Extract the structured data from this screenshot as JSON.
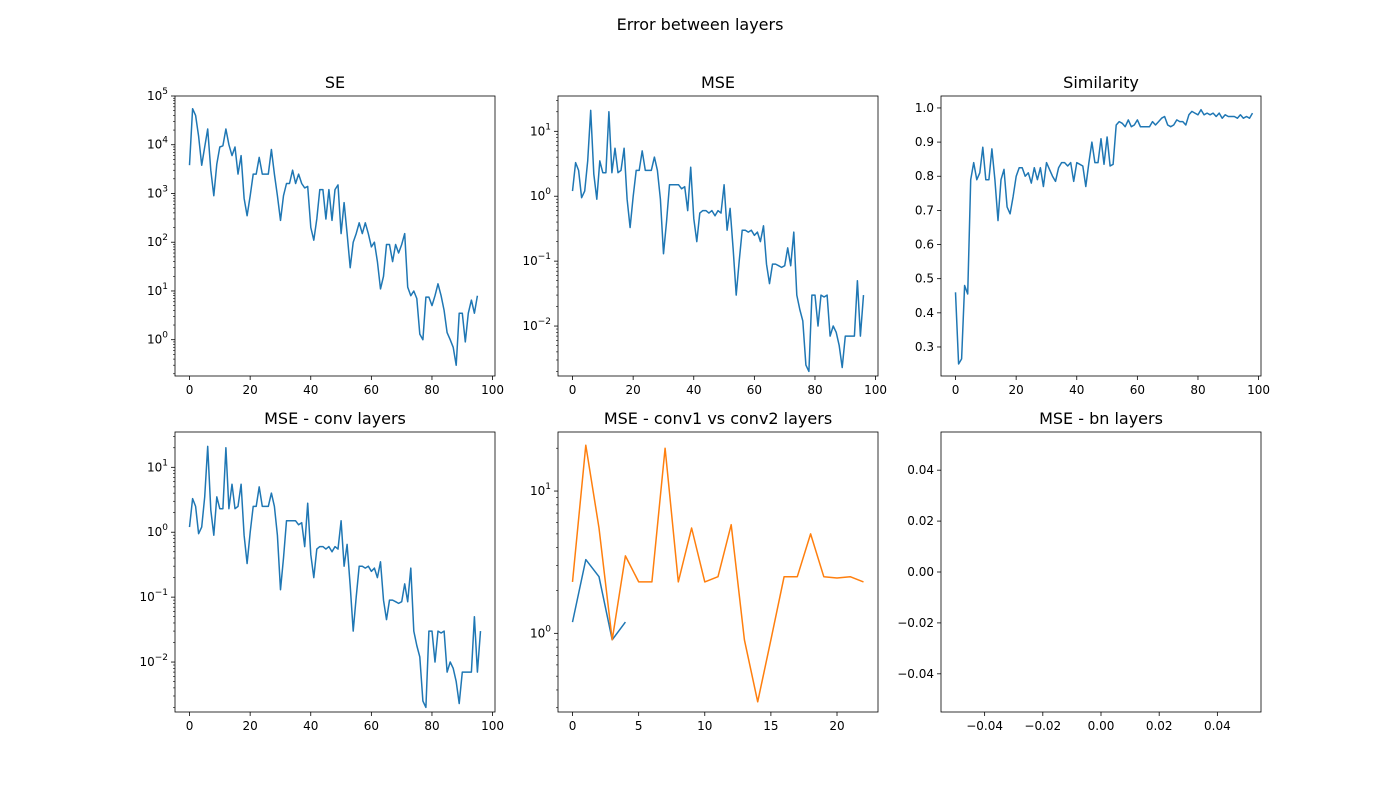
{
  "figure": {
    "suptitle": "Error between layers"
  },
  "chart_data": [
    {
      "type": "line",
      "title": "SE",
      "yscale": "log",
      "xlim": [
        -4.8,
        100.8
      ],
      "ylim": [
        0.18,
        100000
      ],
      "xticks": [
        0,
        20,
        40,
        60,
        80,
        100
      ],
      "xtick_labels": [
        "0",
        "20",
        "40",
        "60",
        "80",
        "100"
      ],
      "yticks": [
        1,
        10,
        100,
        1000,
        10000,
        100000
      ],
      "ytick_labels": [
        "10^0",
        "10^1",
        "10^2",
        "10^3",
        "10^4",
        "10^5"
      ],
      "series": [
        {
          "color": "#1f77b4",
          "x_start": 0,
          "values": [
            3800,
            55000,
            40000,
            15000,
            3800,
            9000,
            21000,
            3000,
            900,
            4000,
            9000,
            9500,
            21000,
            10000,
            6000,
            9000,
            2500,
            6000,
            800,
            350,
            900,
            2500,
            2500,
            5500,
            2500,
            2500,
            2500,
            8000,
            2500,
            900,
            280,
            900,
            1600,
            1600,
            3000,
            1600,
            2500,
            1600,
            1300,
            1400,
            200,
            110,
            300,
            1200,
            1200,
            300,
            1200,
            280,
            1200,
            1500,
            150,
            650,
            150,
            30,
            100,
            150,
            250,
            150,
            250,
            150,
            80,
            100,
            40,
            11,
            20,
            90,
            90,
            40,
            90,
            60,
            90,
            150,
            12,
            8,
            10,
            7,
            1.3,
            1.0,
            7.5,
            7.5,
            5,
            8,
            14,
            8,
            4,
            1.4,
            1.0,
            0.7,
            0.3,
            3.5,
            3.5,
            0.9,
            3.5,
            6.5,
            3.5,
            8
          ]
        }
      ]
    },
    {
      "type": "line",
      "title": "MSE",
      "yscale": "log",
      "xlim": [
        -4.8,
        100.8
      ],
      "ylim": [
        0.0017,
        35
      ],
      "xticks": [
        0,
        20,
        40,
        60,
        80,
        100
      ],
      "xtick_labels": [
        "0",
        "20",
        "40",
        "60",
        "80",
        "100"
      ],
      "yticks": [
        0.01,
        0.1,
        1,
        10
      ],
      "ytick_labels": [
        "10^-2",
        "10^-1",
        "10^0",
        "10^1"
      ],
      "series": [
        {
          "color": "#1f77b4",
          "x_start": 0,
          "values": [
            1.2,
            3.3,
            2.5,
            0.95,
            1.2,
            3.5,
            21,
            2.2,
            0.9,
            3.5,
            2.3,
            2.3,
            20,
            2.3,
            5.5,
            2.3,
            2.5,
            5.5,
            0.9,
            0.33,
            1.0,
            2.5,
            2.5,
            5.0,
            2.5,
            2.5,
            2.5,
            4.0,
            2.5,
            0.9,
            0.13,
            0.4,
            1.5,
            1.5,
            1.5,
            1.5,
            1.3,
            1.4,
            0.6,
            2.8,
            0.45,
            0.2,
            0.55,
            0.6,
            0.6,
            0.55,
            0.6,
            0.5,
            0.6,
            0.55,
            1.5,
            0.3,
            0.65,
            0.15,
            0.03,
            0.1,
            0.3,
            0.3,
            0.28,
            0.3,
            0.25,
            0.28,
            0.2,
            0.35,
            0.09,
            0.045,
            0.09,
            0.09,
            0.085,
            0.08,
            0.085,
            0.16,
            0.085,
            0.28,
            0.03,
            0.018,
            0.012,
            0.0025,
            0.002,
            0.03,
            0.03,
            0.01,
            0.03,
            0.028,
            0.03,
            0.007,
            0.01,
            0.008,
            0.005,
            0.0023,
            0.007,
            0.007,
            0.007,
            0.007,
            0.05,
            0.007,
            0.03
          ]
        }
      ]
    },
    {
      "type": "line",
      "title": "Similarity",
      "yscale": "linear",
      "xlim": [
        -4.8,
        100.8
      ],
      "ylim": [
        0.215,
        1.035
      ],
      "xticks": [
        0,
        20,
        40,
        60,
        80,
        100
      ],
      "xtick_labels": [
        "0",
        "20",
        "40",
        "60",
        "80",
        "100"
      ],
      "yticks": [
        0.3,
        0.4,
        0.5,
        0.6,
        0.7,
        0.8,
        0.9,
        1.0
      ],
      "ytick_labels": [
        "0.3",
        "0.4",
        "0.5",
        "0.6",
        "0.7",
        "0.8",
        "0.9",
        "1.0"
      ],
      "series": [
        {
          "color": "#1f77b4",
          "x_start": 0,
          "values": [
            0.46,
            0.25,
            0.265,
            0.48,
            0.455,
            0.79,
            0.84,
            0.79,
            0.81,
            0.885,
            0.79,
            0.79,
            0.88,
            0.79,
            0.67,
            0.79,
            0.82,
            0.71,
            0.69,
            0.74,
            0.8,
            0.825,
            0.825,
            0.8,
            0.81,
            0.78,
            0.825,
            0.79,
            0.825,
            0.77,
            0.84,
            0.82,
            0.8,
            0.785,
            0.825,
            0.84,
            0.84,
            0.83,
            0.84,
            0.785,
            0.84,
            0.835,
            0.83,
            0.77,
            0.84,
            0.9,
            0.84,
            0.84,
            0.91,
            0.835,
            0.915,
            0.83,
            0.835,
            0.95,
            0.96,
            0.955,
            0.945,
            0.965,
            0.945,
            0.95,
            0.965,
            0.945,
            0.945,
            0.945,
            0.945,
            0.96,
            0.95,
            0.96,
            0.97,
            0.975,
            0.95,
            0.945,
            0.95,
            0.965,
            0.96,
            0.96,
            0.95,
            0.98,
            0.99,
            0.985,
            0.98,
            0.995,
            0.98,
            0.985,
            0.98,
            0.985,
            0.975,
            0.985,
            0.97,
            0.98,
            0.975,
            0.975,
            0.975,
            0.97,
            0.98,
            0.97,
            0.975,
            0.97,
            0.985
          ]
        }
      ]
    },
    {
      "type": "line",
      "title": "MSE - conv layers",
      "yscale": "log",
      "xlim": [
        -4.8,
        100.8
      ],
      "ylim": [
        0.0017,
        35
      ],
      "xticks": [
        0,
        20,
        40,
        60,
        80,
        100
      ],
      "xtick_labels": [
        "0",
        "20",
        "40",
        "60",
        "80",
        "100"
      ],
      "yticks": [
        0.01,
        0.1,
        1,
        10
      ],
      "ytick_labels": [
        "10^-2",
        "10^-1",
        "10^0",
        "10^1"
      ],
      "series": [
        {
          "color": "#1f77b4",
          "x_start": 0,
          "values": [
            1.2,
            3.3,
            2.5,
            0.95,
            1.2,
            3.5,
            21,
            2.2,
            0.9,
            3.5,
            2.3,
            2.3,
            20,
            2.3,
            5.5,
            2.3,
            2.5,
            5.5,
            0.9,
            0.33,
            1.0,
            2.5,
            2.5,
            5.0,
            2.5,
            2.5,
            2.5,
            4.0,
            2.5,
            0.9,
            0.13,
            0.4,
            1.5,
            1.5,
            1.5,
            1.5,
            1.3,
            1.4,
            0.6,
            2.8,
            0.45,
            0.2,
            0.55,
            0.6,
            0.6,
            0.55,
            0.6,
            0.5,
            0.6,
            0.55,
            1.5,
            0.3,
            0.65,
            0.15,
            0.03,
            0.1,
            0.3,
            0.3,
            0.28,
            0.3,
            0.25,
            0.28,
            0.2,
            0.35,
            0.09,
            0.045,
            0.09,
            0.09,
            0.085,
            0.08,
            0.085,
            0.16,
            0.085,
            0.28,
            0.03,
            0.018,
            0.012,
            0.0025,
            0.002,
            0.03,
            0.03,
            0.01,
            0.03,
            0.028,
            0.03,
            0.007,
            0.01,
            0.008,
            0.005,
            0.0023,
            0.007,
            0.007,
            0.007,
            0.007,
            0.05,
            0.007,
            0.03
          ]
        }
      ]
    },
    {
      "type": "line",
      "title": "MSE - conv1 vs conv2 layers",
      "yscale": "log",
      "xlim": [
        -1.1,
        23.1
      ],
      "ylim": [
        0.28,
        26
      ],
      "xticks": [
        0,
        5,
        10,
        15,
        20
      ],
      "xtick_labels": [
        "0",
        "5",
        "10",
        "15",
        "20"
      ],
      "yticks": [
        1,
        10
      ],
      "ytick_labels": [
        "10^0",
        "10^1"
      ],
      "series": [
        {
          "color": "#1f77b4",
          "x_start": 0,
          "values": [
            1.2,
            3.3,
            2.5,
            0.9,
            1.2
          ]
        },
        {
          "color": "#ff7f0e",
          "x_start": 0,
          "values": [
            2.3,
            21,
            5.5,
            0.9,
            3.5,
            2.3,
            2.3,
            20,
            2.3,
            5.5,
            2.3,
            2.5,
            5.8,
            0.9,
            0.33,
            0.9,
            2.5,
            2.5,
            5.0,
            2.5,
            2.45,
            2.5,
            2.3
          ]
        }
      ]
    },
    {
      "type": "line",
      "title": "MSE - bn layers",
      "yscale": "linear",
      "xlim": [
        -0.055,
        0.055
      ],
      "ylim": [
        -0.055,
        0.055
      ],
      "xticks": [
        -0.04,
        -0.02,
        0.0,
        0.02,
        0.04
      ],
      "xtick_labels": [
        "−0.04",
        "−0.02",
        "0.00",
        "0.02",
        "0.04"
      ],
      "yticks": [
        -0.04,
        -0.02,
        0.0,
        0.02,
        0.04
      ],
      "ytick_labels": [
        "−0.04",
        "−0.02",
        "0.00",
        "0.02",
        "0.04"
      ],
      "series": []
    }
  ]
}
